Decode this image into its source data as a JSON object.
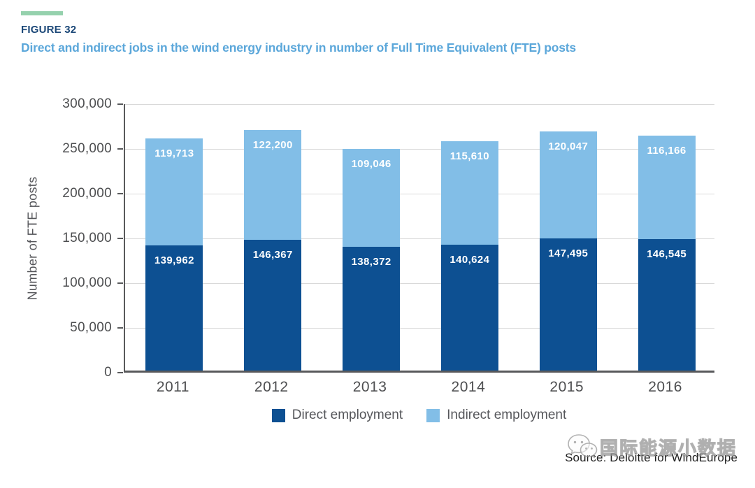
{
  "figure": {
    "label": "FIGURE 32",
    "title": "Direct and indirect jobs in the wind energy industry in number of Full Time Equivalent (FTE) posts"
  },
  "chart_data": {
    "type": "bar",
    "stacked": true,
    "categories": [
      "2011",
      "2012",
      "2013",
      "2014",
      "2015",
      "2016"
    ],
    "series": [
      {
        "name": "Direct employment",
        "color": "#0d5092",
        "values": [
          139962,
          146367,
          138372,
          140624,
          147495,
          146545
        ],
        "labels": [
          "139,962",
          "146,367",
          "138,372",
          "140,624",
          "147,495",
          "146,545"
        ]
      },
      {
        "name": "Indirect employment",
        "color": "#82bee7",
        "values": [
          119713,
          122200,
          109046,
          115610,
          120047,
          116166
        ],
        "labels": [
          "119,713",
          "122,200",
          "109,046",
          "115,610",
          "120,047",
          "116,166"
        ]
      }
    ],
    "title": "Direct and indirect jobs in the wind energy industry in number of Full Time Equivalent (FTE) posts",
    "xlabel": "",
    "ylabel": "Number of FTE posts",
    "ylim": [
      0,
      300000
    ],
    "ytick_step": 50000,
    "ytick_labels": [
      "0",
      "50,000",
      "100,000",
      "150,000",
      "200,000",
      "250,000",
      "300,000"
    ],
    "grid": true,
    "legend_position": "bottom"
  },
  "footer": {
    "source": "Source: Deloitte for WindEurope",
    "watermark": "国际能源小数据"
  },
  "colors": {
    "accent_green": "#95d1ad",
    "figure_label": "#1c4878",
    "title_blue": "#5ba7da",
    "axis": "#58595b",
    "gridline": "#d9d9d9",
    "tick_text": "#4d4e50"
  }
}
